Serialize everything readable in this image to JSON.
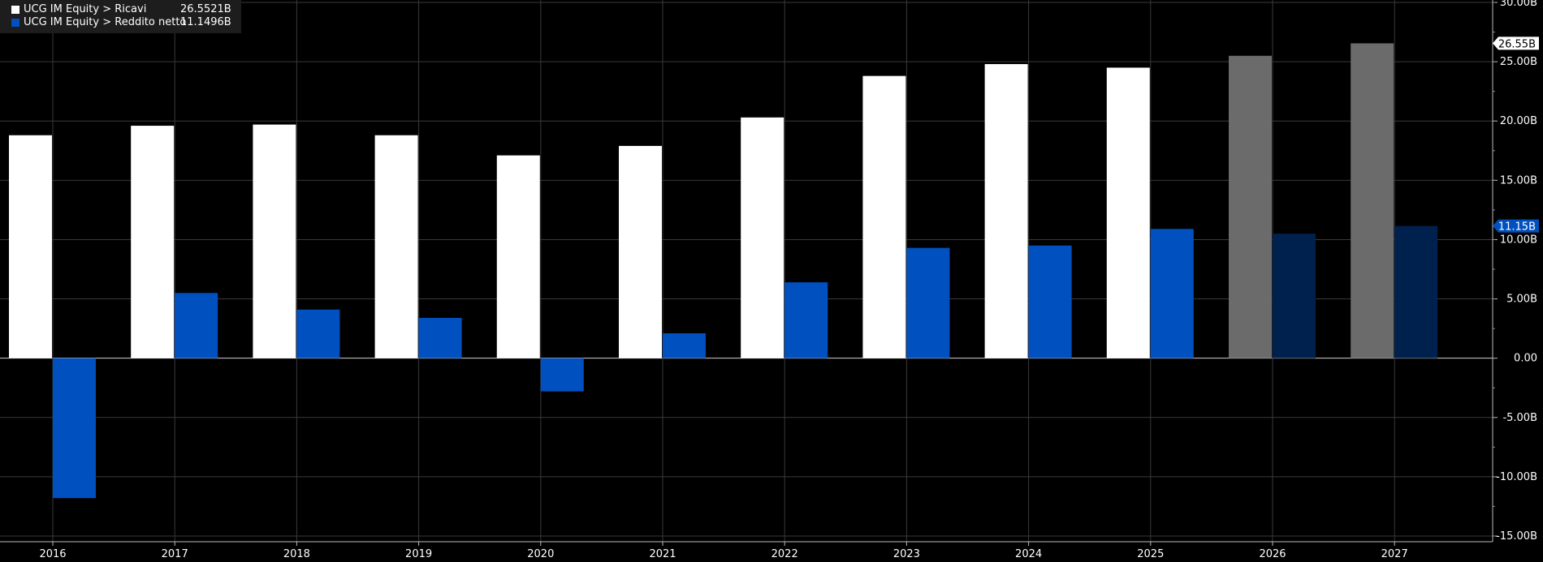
{
  "legend": [
    {
      "name": "UCG IM Equity > Ricavi",
      "value": "26.5521B",
      "color": "#ffffff"
    },
    {
      "name": "UCG IM Equity > Reddito netto",
      "value": "11.1496B",
      "color": "#0050c0"
    }
  ],
  "price_tags": [
    {
      "label": "26.55B",
      "value": 26.5521,
      "series": 0
    },
    {
      "label": "11.15B",
      "value": 11.1496,
      "series": 1
    }
  ],
  "chart_data": {
    "type": "bar",
    "categories": [
      "2016",
      "2017",
      "2018",
      "2019",
      "2020",
      "2021",
      "2022",
      "2023",
      "2024",
      "2025",
      "2026",
      "2027"
    ],
    "estimate_from_index": 10,
    "series": [
      {
        "name": "UCG IM Equity > Ricavi",
        "color": "#ffffff",
        "estimate_color": "#6b6b6b",
        "values": [
          18.8,
          19.6,
          19.7,
          18.8,
          17.1,
          17.9,
          20.3,
          23.8,
          24.8,
          24.5,
          25.5,
          26.55
        ]
      },
      {
        "name": "UCG IM Equity > Reddito netto",
        "color": "#0050c0",
        "estimate_color": "#00214d",
        "values": [
          -11.8,
          5.5,
          4.1,
          3.4,
          -2.8,
          2.1,
          6.4,
          9.3,
          9.5,
          10.9,
          10.5,
          11.15
        ]
      }
    ],
    "ylim": [
      -15,
      30
    ],
    "yticks": [
      -15,
      -10,
      -5,
      0,
      5,
      10,
      15,
      20,
      25,
      30
    ],
    "ytick_labels": [
      "-15.00B",
      "-10.00B",
      "-5.00B",
      "0.00",
      "5.00B",
      "10.00B",
      "15.00B",
      "20.00B",
      "25.00B",
      "30.00B"
    ],
    "grid": true,
    "legend_position": "top-left"
  }
}
